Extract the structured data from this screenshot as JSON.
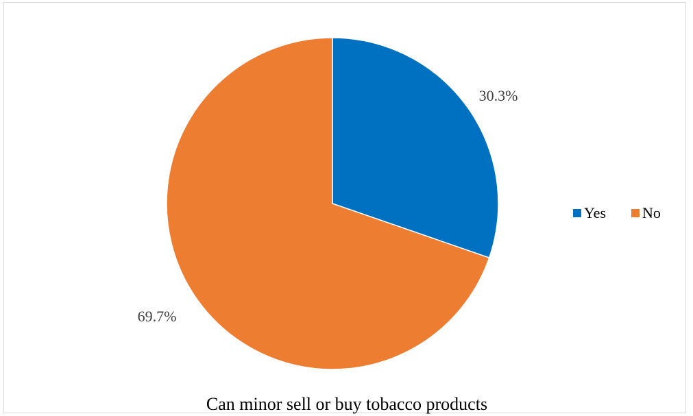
{
  "chart_data": {
    "type": "pie",
    "title": "",
    "caption": "Can minor sell or buy tobacco products",
    "legend_position": "right",
    "slices": [
      {
        "name": "Yes",
        "value": 30.3,
        "label": "30.3%",
        "color": "#0070C0"
      },
      {
        "name": "No",
        "value": 69.7,
        "label": "69.7%",
        "color": "#ED7D31"
      }
    ]
  }
}
